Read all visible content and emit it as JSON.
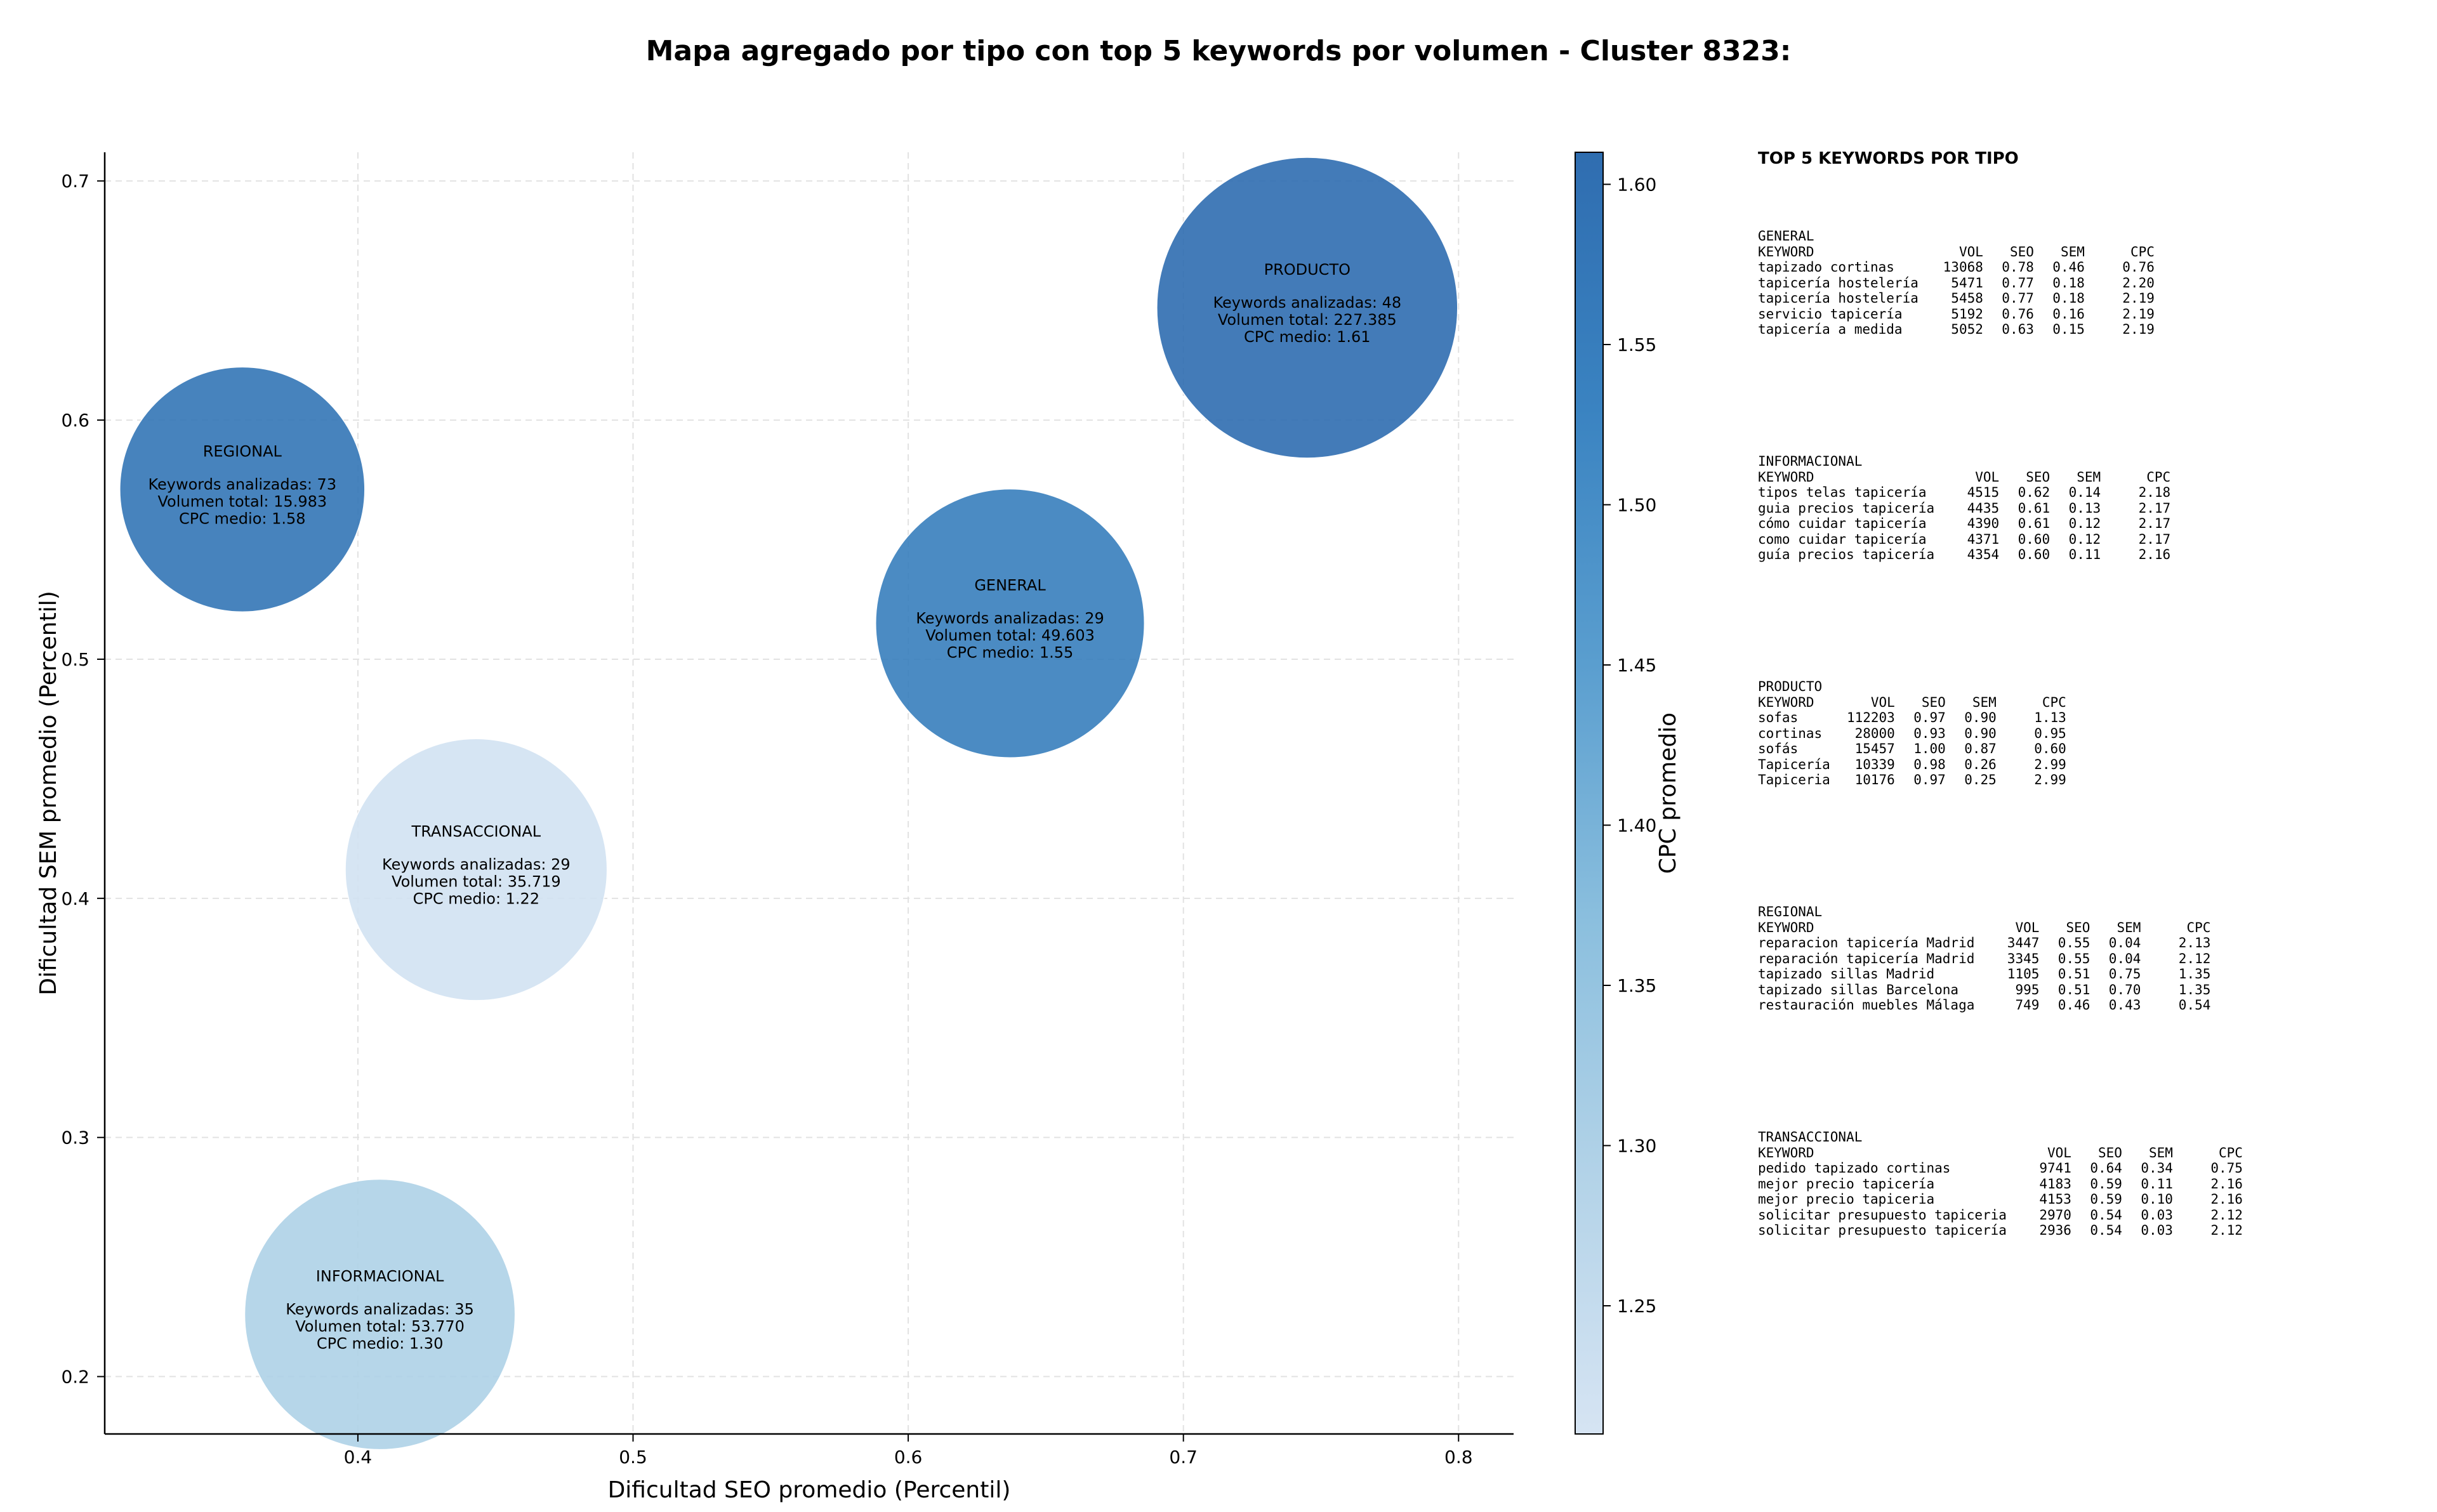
{
  "chart_data": {
    "type": "scatter",
    "title": "Mapa agregado por tipo con top 5 keywords por volumen - Cluster 8323:",
    "xlabel": "Dificultad SEO promedio (Percentil)",
    "ylabel": "Dificultad SEM promedio (Percentil)",
    "xlim": [
      0.308,
      0.82
    ],
    "ylim": [
      0.176,
      0.712
    ],
    "xticks": [
      "0.4",
      "0.5",
      "0.6",
      "0.7",
      "0.8"
    ],
    "yticks": [
      "0.2",
      "0.3",
      "0.4",
      "0.5",
      "0.6",
      "0.7"
    ],
    "grid": true,
    "colorbar": {
      "label": "CPC promedio",
      "range": [
        1.21,
        1.61
      ],
      "ticks": [
        "1.25",
        "1.30",
        "1.35",
        "1.40",
        "1.45",
        "1.50",
        "1.55",
        "1.60"
      ],
      "colormap": [
        "#d6e4f3",
        "#b3d3e8",
        "#8bbfde",
        "#5a9ecf",
        "#3a83c1",
        "#2f6db0"
      ]
    },
    "points": [
      {
        "label": "PRODUCTO",
        "x": 0.745,
        "y": 0.647,
        "keywords_line": "Keywords analizadas: 48",
        "volume_line": "Volumen total: 227.385",
        "cpc_line": "CPC medio: 1.61",
        "cpc": 1.61,
        "keywords": 48
      },
      {
        "label": "REGIONAL",
        "x": 0.358,
        "y": 0.571,
        "keywords_line": "Keywords analizadas: 73",
        "volume_line": "Volumen total: 15.983",
        "cpc_line": "CPC medio: 1.58",
        "cpc": 1.58,
        "keywords": 73
      },
      {
        "label": "GENERAL",
        "x": 0.637,
        "y": 0.515,
        "keywords_line": "Keywords analizadas: 29",
        "volume_line": "Volumen total: 49.603",
        "cpc_line": "CPC medio: 1.55",
        "cpc": 1.55,
        "keywords": 29
      },
      {
        "label": "TRANSACCIONAL",
        "x": 0.443,
        "y": 0.412,
        "keywords_line": "Keywords analizadas: 29",
        "volume_line": "Volumen total: 35.719",
        "cpc_line": "CPC medio: 1.22",
        "cpc": 1.22,
        "keywords": 29
      },
      {
        "label": "INFORMACIONAL",
        "x": 0.408,
        "y": 0.226,
        "keywords_line": "Keywords analizadas: 35",
        "volume_line": "Volumen total: 53.770",
        "cpc_line": "CPC medio: 1.30",
        "cpc": 1.3,
        "keywords": 35
      }
    ]
  },
  "panel": {
    "title": "TOP 5 KEYWORDS POR TIPO",
    "groups": [
      {
        "name": "GENERAL",
        "headers": [
          "KEYWORD",
          "VOL",
          "SEO",
          "SEM",
          "CPC"
        ],
        "rows": [
          [
            "tapizado cortinas",
            "13068",
            "0.78",
            "0.46",
            "0.76"
          ],
          [
            "tapicería hostelería",
            "5471",
            "0.77",
            "0.18",
            "2.20"
          ],
          [
            "tapicería hostelería",
            "5458",
            "0.77",
            "0.18",
            "2.19"
          ],
          [
            "servicio tapicería",
            "5192",
            "0.76",
            "0.16",
            "2.19"
          ],
          [
            "tapicería a medida",
            "5052",
            "0.63",
            "0.15",
            "2.19"
          ]
        ]
      },
      {
        "name": "INFORMACIONAL",
        "headers": [
          "KEYWORD",
          "VOL",
          "SEO",
          "SEM",
          "CPC"
        ],
        "rows": [
          [
            "tipos telas tapicería",
            "4515",
            "0.62",
            "0.14",
            "2.18"
          ],
          [
            "guia precios tapicería",
            "4435",
            "0.61",
            "0.13",
            "2.17"
          ],
          [
            "cómo cuidar tapicería",
            "4390",
            "0.61",
            "0.12",
            "2.17"
          ],
          [
            "como cuidar tapicería",
            "4371",
            "0.60",
            "0.12",
            "2.17"
          ],
          [
            "guía precios tapicería",
            "4354",
            "0.60",
            "0.11",
            "2.16"
          ]
        ]
      },
      {
        "name": "PRODUCTO",
        "headers": [
          "KEYWORD",
          "VOL",
          "SEO",
          "SEM",
          "CPC"
        ],
        "rows": [
          [
            "sofas",
            "112203",
            "0.97",
            "0.90",
            "1.13"
          ],
          [
            "cortinas",
            "28000",
            "0.93",
            "0.90",
            "0.95"
          ],
          [
            "sofás",
            "15457",
            "1.00",
            "0.87",
            "0.60"
          ],
          [
            "Tapicería",
            "10339",
            "0.98",
            "0.26",
            "2.99"
          ],
          [
            "Tapiceria",
            "10176",
            "0.97",
            "0.25",
            "2.99"
          ]
        ]
      },
      {
        "name": "REGIONAL",
        "headers": [
          "KEYWORD",
          "VOL",
          "SEO",
          "SEM",
          "CPC"
        ],
        "rows": [
          [
            "reparacion tapicería Madrid",
            "3447",
            "0.55",
            "0.04",
            "2.13"
          ],
          [
            "reparación tapicería Madrid",
            "3345",
            "0.55",
            "0.04",
            "2.12"
          ],
          [
            "tapizado sillas Madrid",
            "1105",
            "0.51",
            "0.75",
            "1.35"
          ],
          [
            "tapizado sillas Barcelona",
            "995",
            "0.51",
            "0.70",
            "1.35"
          ],
          [
            "restauración muebles Málaga",
            "749",
            "0.46",
            "0.43",
            "0.54"
          ]
        ]
      },
      {
        "name": "TRANSACCIONAL",
        "headers": [
          "KEYWORD",
          "VOL",
          "SEO",
          "SEM",
          "CPC"
        ],
        "rows": [
          [
            "pedido tapizado cortinas",
            "9741",
            "0.64",
            "0.34",
            "0.75"
          ],
          [
            "mejor precio tapicería",
            "4183",
            "0.59",
            "0.11",
            "2.16"
          ],
          [
            "mejor precio tapiceria",
            "4153",
            "0.59",
            "0.10",
            "2.16"
          ],
          [
            "solicitar presupuesto tapiceria",
            "2970",
            "0.54",
            "0.03",
            "2.12"
          ],
          [
            "solicitar presupuesto tapicería",
            "2936",
            "0.54",
            "0.03",
            "2.12"
          ]
        ]
      }
    ]
  }
}
